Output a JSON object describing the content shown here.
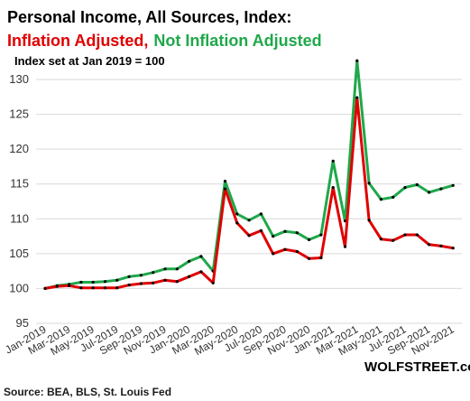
{
  "header": {
    "title": "Personal Income, All Sources, Index:",
    "subtitle_red": "Inflation Adjusted,",
    "subtitle_green": "Not Inflation Adjusted",
    "note": "Index set at Jan 2019 = 100"
  },
  "footer": {
    "source": "Source: BEA, BLS, St. Louis Fed",
    "brand": "WOLFSTREET.com"
  },
  "colors": {
    "inflation_adjusted": "#e00000",
    "not_inflation_adjusted": "#1fa84a",
    "markers": "#000000"
  },
  "chart_data": {
    "type": "line",
    "title": "Personal Income, All Sources, Index:",
    "xlabel": "",
    "ylabel": "",
    "ylim": [
      95,
      130
    ],
    "yticks": [
      95,
      100,
      105,
      110,
      115,
      120,
      125,
      130
    ],
    "grid": true,
    "x": [
      "Jan-2019",
      "Feb-2019",
      "Mar-2019",
      "Apr-2019",
      "May-2019",
      "Jun-2019",
      "Jul-2019",
      "Aug-2019",
      "Sep-2019",
      "Oct-2019",
      "Nov-2019",
      "Dec-2019",
      "Jan-2020",
      "Feb-2020",
      "Mar-2020",
      "Apr-2020",
      "May-2020",
      "Jun-2020",
      "Jul-2020",
      "Aug-2020",
      "Sep-2020",
      "Oct-2020",
      "Nov-2020",
      "Dec-2020",
      "Jan-2021",
      "Feb-2021",
      "Mar-2021",
      "Apr-2021",
      "May-2021",
      "Jun-2021",
      "Jul-2021",
      "Aug-2021",
      "Sep-2021",
      "Oct-2021",
      "Nov-2021",
      "Dec-2021"
    ],
    "xtick_labels": [
      "Jan-2019",
      "Mar-2019",
      "May-2019",
      "Jul-2019",
      "Sep-2019",
      "Nov-2019",
      "Jan-2020",
      "Mar-2020",
      "May-2020",
      "Jul-2020",
      "Sep-2020",
      "Nov-2020",
      "Jan-2021",
      "Mar-2021",
      "May-2021",
      "Jul-2021",
      "Sep-2021",
      "Nov-2021"
    ],
    "series": [
      {
        "name": "Not Inflation Adjusted",
        "color": "#1fa84a",
        "values": [
          100.0,
          100.4,
          100.6,
          100.9,
          100.9,
          101.0,
          101.2,
          101.7,
          101.9,
          102.3,
          102.8,
          102.8,
          103.9,
          104.6,
          102.5,
          115.4,
          110.7,
          109.8,
          110.7,
          107.5,
          108.2,
          108.0,
          107.0,
          107.7,
          118.3,
          109.7,
          132.7,
          115.1,
          112.8,
          113.1,
          114.5,
          114.9,
          113.8,
          114.3,
          114.8,
          null
        ]
      },
      {
        "name": "Inflation Adjusted",
        "color": "#e00000",
        "values": [
          100.0,
          100.3,
          100.4,
          100.1,
          100.1,
          100.1,
          100.1,
          100.5,
          100.7,
          100.8,
          101.2,
          101.0,
          101.7,
          102.4,
          100.8,
          114.3,
          109.4,
          107.6,
          108.3,
          105.0,
          105.6,
          105.3,
          104.3,
          104.4,
          114.5,
          106.0,
          127.4,
          109.8,
          107.1,
          106.9,
          107.7,
          107.7,
          106.3,
          106.1,
          105.8,
          null
        ]
      }
    ]
  }
}
